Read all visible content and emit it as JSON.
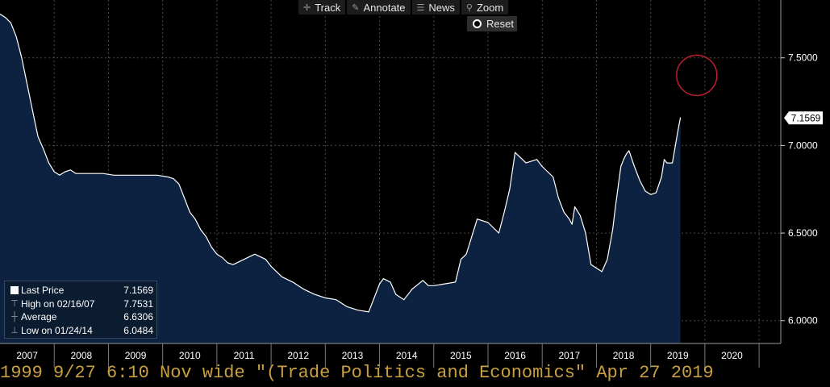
{
  "toolbar": {
    "track": {
      "label": "Track",
      "icon": "crosshair-icon"
    },
    "annotate": {
      "label": "Annotate",
      "icon": "pencil-icon"
    },
    "news": {
      "label": "News",
      "icon": "news-icon"
    },
    "zoom": {
      "label": "Zoom",
      "icon": "magnifier-icon"
    },
    "reset": {
      "label": "Reset",
      "icon": "radio-dot-icon"
    }
  },
  "legend": {
    "last_price": {
      "label": "Last Price",
      "value": "7.1569"
    },
    "high": {
      "label": "High on 02/16/07",
      "value": "7.7531"
    },
    "average": {
      "label": "Average",
      "value": "6.6306"
    },
    "low": {
      "label": "Low on 01/24/14",
      "value": "6.0484"
    }
  },
  "bottom_text": "1999 9/27 6:10 Nov wide \"(Trade Politics and Economics\" Apr 27 2019",
  "colors": {
    "background": "#000000",
    "area_fill": "#0d2240",
    "line": "#ffffff",
    "grid": "#4a4a4a",
    "highlight_circle": "#c0202a"
  },
  "chart_data": {
    "type": "area",
    "title": "",
    "xlabel": "",
    "ylabel": "",
    "x_ticks": [
      "2007",
      "2008",
      "2009",
      "2010",
      "2011",
      "2012",
      "2013",
      "2014",
      "2015",
      "2016",
      "2017",
      "2018",
      "2019",
      "2020"
    ],
    "y_ticks": [
      "6.0000",
      "6.5000",
      "7.0000",
      "7.5000"
    ],
    "ylim": [
      5.87,
      7.83
    ],
    "xlim": [
      2007.0,
      2021.4
    ],
    "last_price_label": "7.1569",
    "grid": true,
    "annotation": "red circle highlighting level near 7.4 in mid-2019",
    "series": [
      {
        "x": [
          2007.0,
          2007.1,
          2007.2,
          2007.3,
          2007.4,
          2007.5,
          2007.6,
          2007.7,
          2007.8,
          2007.9,
          2008.0,
          2008.1,
          2008.2,
          2008.3,
          2008.4,
          2008.5,
          2008.7,
          2008.9,
          2009.1,
          2009.3,
          2009.5,
          2009.7,
          2009.9,
          2010.1,
          2010.2,
          2010.3,
          2010.4,
          2010.5,
          2010.6,
          2010.7,
          2010.8,
          2010.9,
          2011.0,
          2011.1,
          2011.2,
          2011.3,
          2011.5,
          2011.7,
          2011.9,
          2012.0,
          2012.2,
          2012.4,
          2012.5,
          2012.6,
          2012.8,
          2013.0,
          2013.2,
          2013.4,
          2013.6,
          2013.8,
          2014.0,
          2014.07,
          2014.2,
          2014.3,
          2014.45,
          2014.6,
          2014.8,
          2014.9,
          2015.0,
          2015.2,
          2015.4,
          2015.5,
          2015.6,
          2015.8,
          2016.0,
          2016.2,
          2016.3,
          2016.4,
          2016.5,
          2016.7,
          2016.9,
          2017.0,
          2017.2,
          2017.3,
          2017.4,
          2017.5,
          2017.55,
          2017.6,
          2017.7,
          2017.8,
          2017.9,
          2018.0,
          2018.1,
          2018.2,
          2018.3,
          2018.35,
          2018.45,
          2018.5,
          2018.55,
          2018.6,
          2018.7,
          2018.8,
          2018.9,
          2019.0,
          2019.1,
          2019.2,
          2019.25,
          2019.3,
          2019.4,
          2019.5,
          2019.55
        ],
        "y": [
          7.75,
          7.73,
          7.7,
          7.62,
          7.5,
          7.35,
          7.2,
          7.05,
          6.98,
          6.9,
          6.85,
          6.83,
          6.85,
          6.86,
          6.84,
          6.84,
          6.84,
          6.84,
          6.83,
          6.83,
          6.83,
          6.83,
          6.83,
          6.82,
          6.81,
          6.78,
          6.7,
          6.62,
          6.58,
          6.52,
          6.48,
          6.42,
          6.38,
          6.36,
          6.33,
          6.32,
          6.35,
          6.38,
          6.35,
          6.31,
          6.25,
          6.22,
          6.2,
          6.18,
          6.15,
          6.13,
          6.12,
          6.08,
          6.06,
          6.05,
          6.21,
          6.24,
          6.22,
          6.15,
          6.12,
          6.18,
          6.23,
          6.2,
          6.2,
          6.21,
          6.22,
          6.35,
          6.38,
          6.58,
          6.56,
          6.5,
          6.62,
          6.75,
          6.96,
          6.9,
          6.92,
          6.88,
          6.82,
          6.7,
          6.62,
          6.58,
          6.55,
          6.65,
          6.6,
          6.5,
          6.32,
          6.3,
          6.28,
          6.35,
          6.52,
          6.65,
          6.88,
          6.92,
          6.95,
          6.97,
          6.88,
          6.8,
          6.74,
          6.72,
          6.73,
          6.82,
          6.92,
          6.9,
          6.9,
          7.08,
          7.16
        ]
      }
    ]
  }
}
